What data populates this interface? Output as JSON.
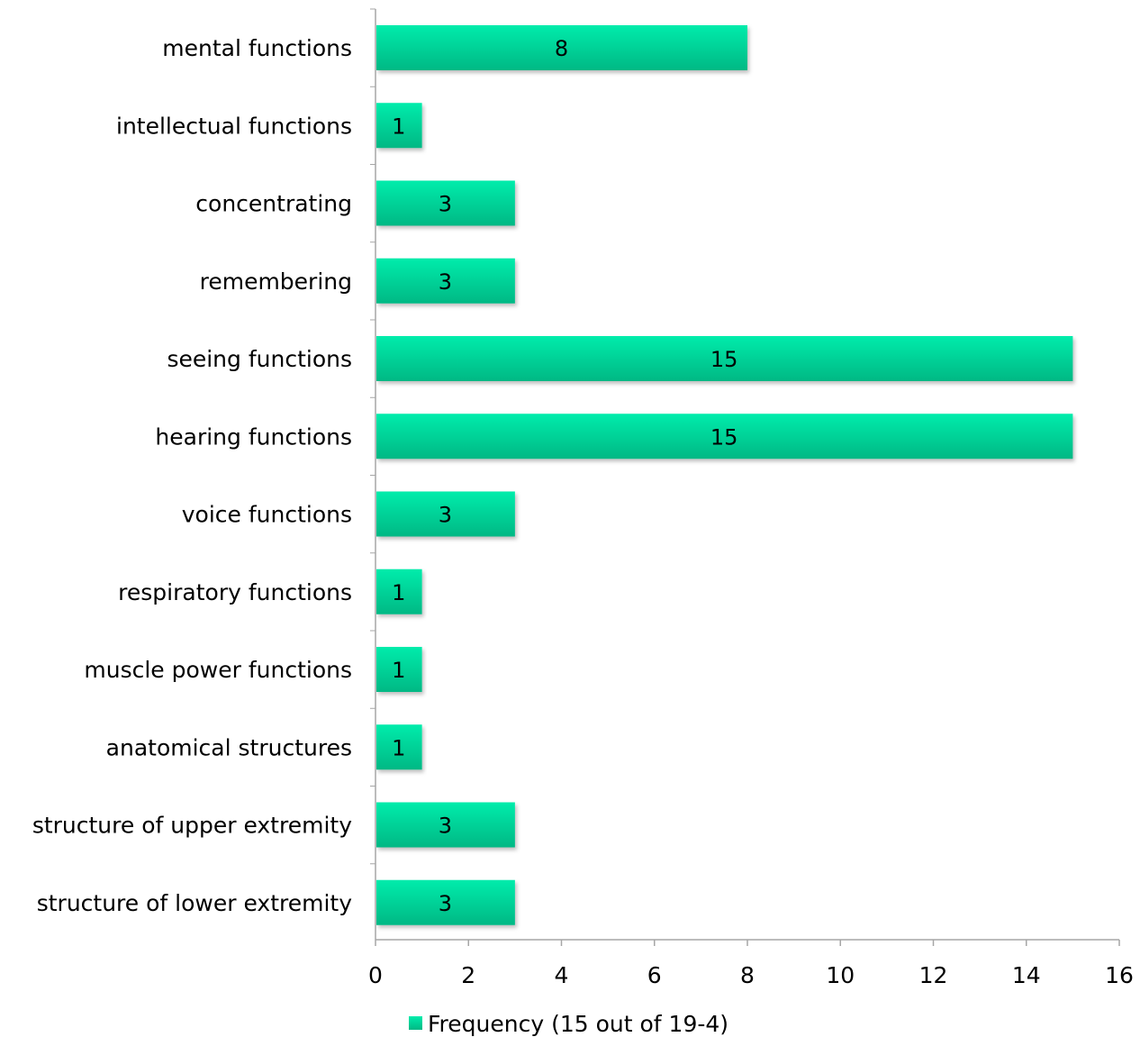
{
  "chart_data": {
    "type": "bar",
    "orientation": "horizontal",
    "categories": [
      "mental functions",
      "intellectual functions",
      "concentrating",
      "remembering",
      "seeing functions",
      "hearing functions",
      "voice functions",
      "respiratory functions",
      "muscle power functions",
      "anatomical structures",
      "structure of upper extremity",
      "structure of lower extremity"
    ],
    "series": [
      {
        "name": "Frequency (15 out of 19-4)",
        "values": [
          8,
          1,
          3,
          3,
          15,
          15,
          3,
          1,
          1,
          1,
          3,
          3
        ]
      }
    ],
    "data_labels": true,
    "xlim": [
      0,
      16
    ],
    "x_ticks": [
      0,
      2,
      4,
      6,
      8,
      10,
      12,
      14,
      16
    ],
    "grid": false,
    "legend_position": "bottom",
    "title": "",
    "xlabel": "",
    "ylabel": ""
  },
  "colors": {
    "bar_top": "#00ecab",
    "bar_bottom": "#00b884",
    "axis": "#a6a6a6",
    "text": "#000000"
  }
}
